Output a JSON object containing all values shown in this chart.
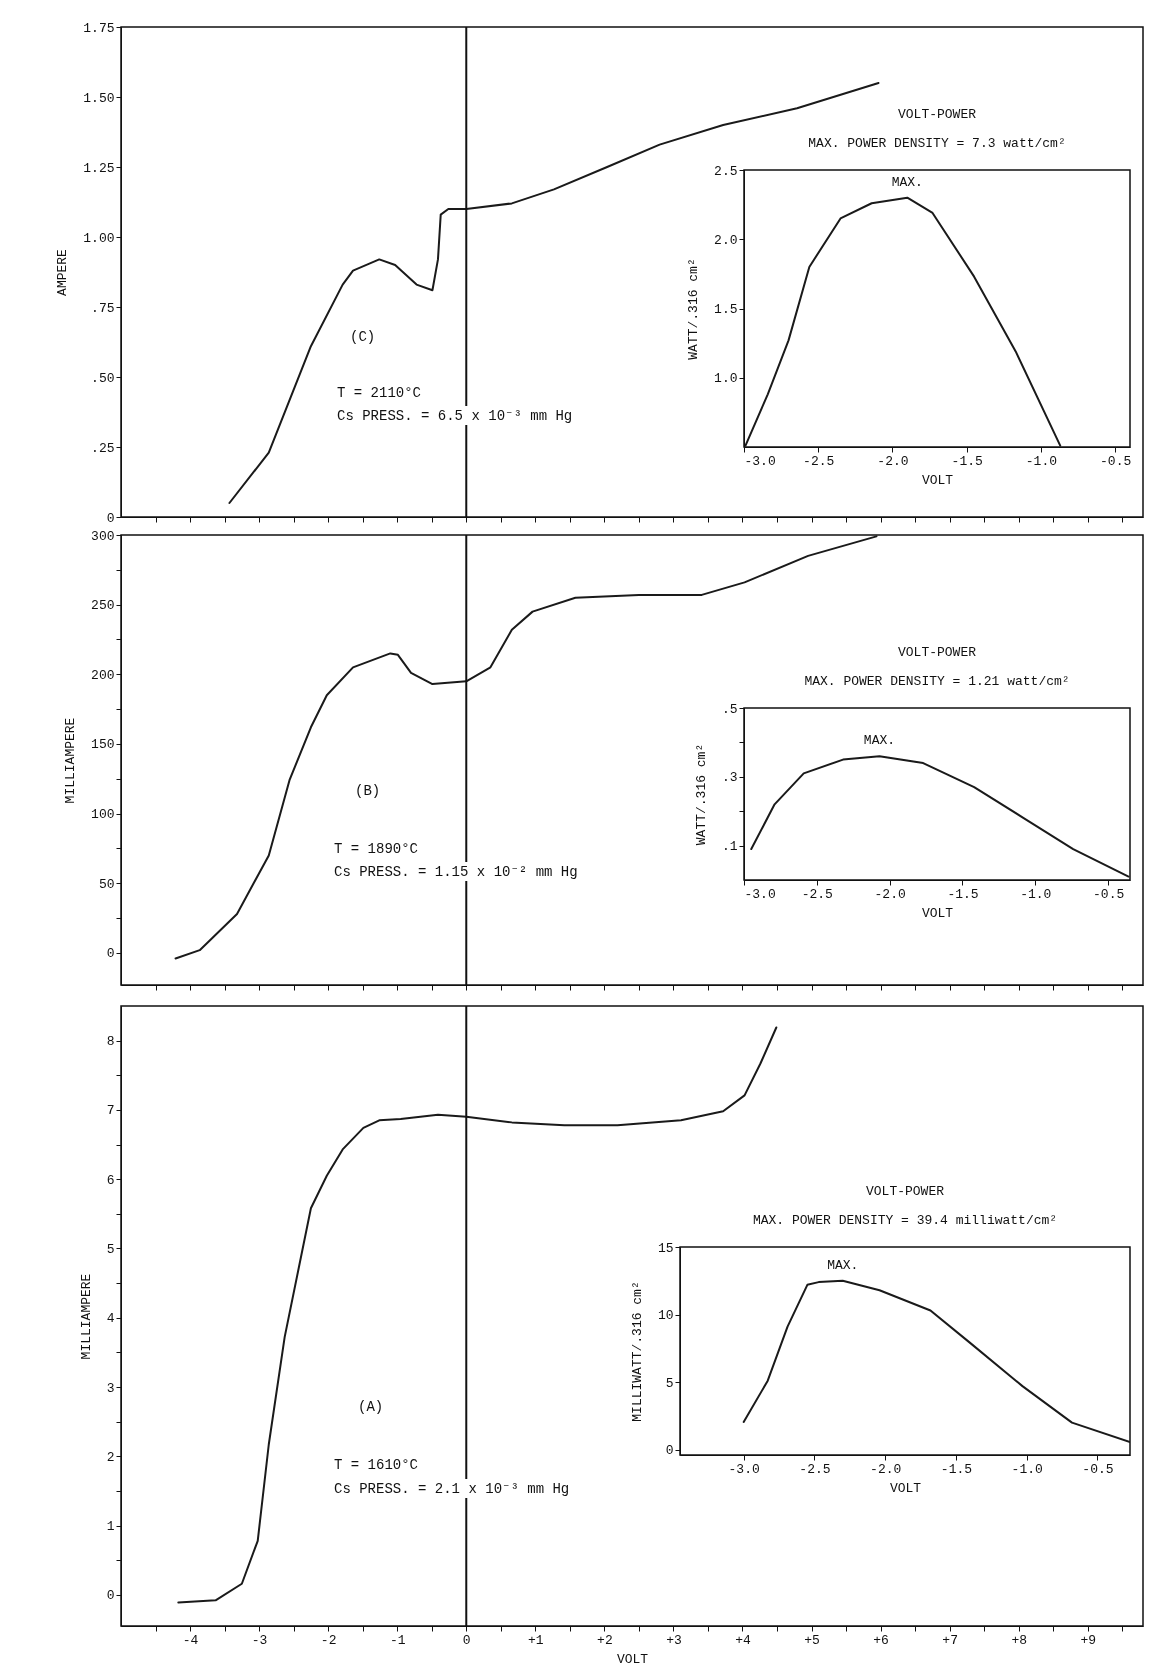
{
  "chart_data": [
    {
      "type": "line",
      "ylabel": "AMPERE",
      "xlim": [
        -5,
        9.8
      ],
      "ylim": [
        0,
        1.75
      ],
      "tick_labels": "y",
      "xticks": [
        {
          "value": -4.5,
          "label": null
        },
        {
          "value": -4,
          "label": null
        },
        {
          "value": -3.5,
          "label": null
        },
        {
          "value": -3,
          "label": null
        },
        {
          "value": -2.5,
          "label": null
        },
        {
          "value": -2,
          "label": null
        },
        {
          "value": -1.5,
          "label": null
        },
        {
          "value": -1,
          "label": null
        },
        {
          "value": -0.5,
          "label": null
        },
        {
          "value": 0,
          "label": null
        },
        {
          "value": 0.5,
          "label": null
        },
        {
          "value": 1,
          "label": null
        },
        {
          "value": 1.5,
          "label": null
        },
        {
          "value": 2,
          "label": null
        },
        {
          "value": 2.5,
          "label": null
        },
        {
          "value": 3,
          "label": null
        },
        {
          "value": 3.5,
          "label": null
        },
        {
          "value": 4,
          "label": null
        },
        {
          "value": 4.5,
          "label": null
        },
        {
          "value": 5,
          "label": null
        },
        {
          "value": 5.5,
          "label": null
        },
        {
          "value": 6,
          "label": null
        },
        {
          "value": 6.5,
          "label": null
        },
        {
          "value": 7,
          "label": null
        },
        {
          "value": 7.5,
          "label": null
        },
        {
          "value": 8,
          "label": null
        },
        {
          "value": 8.5,
          "label": null
        },
        {
          "value": 9,
          "label": null
        },
        {
          "value": 9.5,
          "label": null
        }
      ],
      "yticks": [
        0,
        {
          "value": 0.25,
          "label": ".25"
        },
        {
          "value": 0.5,
          "label": ".50"
        },
        {
          "value": 0.75,
          "label": ".75"
        },
        {
          "value": 1,
          "label": "1.00"
        },
        {
          "value": 1.25,
          "label": "1.25"
        },
        {
          "value": 1.5,
          "label": "1.50"
        },
        {
          "value": 1.75,
          "label": "1.75"
        }
      ],
      "series": [
        {
          "color": "#1a1a1a",
          "x": [
            -3.43,
            -2.86,
            -2.25,
            -1.79,
            -1.64,
            -1.26,
            -1.03,
            -0.72,
            -0.49,
            -0.41,
            -0.37,
            -0.26,
            0,
            0.66,
            1.27,
            2.04,
            2.8,
            3.72,
            4.79,
            5.97
          ],
          "values": [
            0.05,
            0.23,
            0.61,
            0.83,
            0.88,
            0.92,
            0.9,
            0.83,
            0.81,
            0.92,
            1.08,
            1.1,
            1.1,
            1.12,
            1.17,
            1.25,
            1.33,
            1.4,
            1.46,
            1.55
          ]
        }
      ],
      "ref_lines": [
        {
          "axis": "x",
          "value": 0
        }
      ],
      "annotations": [
        "(C)",
        "T = 2110°C",
        "Cs PRESS. = 6.5 x 10⁻³ mm Hg"
      ]
    },
    {
      "type": "line",
      "title": "VOLT-POWER",
      "subtitle": "MAX. POWER DENSITY = 7.3 watt/cm²",
      "xlabel": "VOLT",
      "ylabel": "WATT/.316 cm²",
      "xlim": [
        -3,
        -0.4
      ],
      "ylim": [
        0.5,
        2.5
      ],
      "xticks": [
        {
          "value": -3,
          "label": "-3.0"
        },
        -2.5,
        {
          "value": -2,
          "label": "-2.0"
        },
        -1.5,
        {
          "value": -1,
          "label": "-1.0"
        },
        -0.5
      ],
      "yticks": [
        {
          "value": 1,
          "label": "1.0"
        },
        1.5,
        {
          "value": 2,
          "label": "2.0"
        },
        2.5
      ],
      "series": [
        {
          "color": "#1a1a1a",
          "x": [
            -2.99,
            -2.84,
            -2.7,
            -2.56,
            -2.35,
            -2.14,
            -1.9,
            -1.73,
            -1.45,
            -1.17,
            -0.87
          ],
          "values": [
            0.51,
            0.88,
            1.27,
            1.8,
            2.15,
            2.26,
            2.3,
            2.19,
            1.73,
            1.19,
            0.51
          ]
        }
      ],
      "annotations": [
        {
          "text": "MAX.",
          "x": -1.9,
          "y": 2.3
        }
      ]
    },
    {
      "type": "line",
      "ylabel": "MILLIAMPERE",
      "xlim": [
        -5,
        9.8
      ],
      "ylim": [
        -23,
        300
      ],
      "tick_labels": "y",
      "xticks": [
        {
          "value": -4.5,
          "label": null
        },
        {
          "value": -4,
          "label": null
        },
        {
          "value": -3.5,
          "label": null
        },
        {
          "value": -3,
          "label": null
        },
        {
          "value": -2.5,
          "label": null
        },
        {
          "value": -2,
          "label": null
        },
        {
          "value": -1.5,
          "label": null
        },
        {
          "value": -1,
          "label": null
        },
        {
          "value": -0.5,
          "label": null
        },
        {
          "value": 0,
          "label": null
        },
        {
          "value": 0.5,
          "label": null
        },
        {
          "value": 1,
          "label": null
        },
        {
          "value": 1.5,
          "label": null
        },
        {
          "value": 2,
          "label": null
        },
        {
          "value": 2.5,
          "label": null
        },
        {
          "value": 3,
          "label": null
        },
        {
          "value": 3.5,
          "label": null
        },
        {
          "value": 4,
          "label": null
        },
        {
          "value": 4.5,
          "label": null
        },
        {
          "value": 5,
          "label": null
        },
        {
          "value": 5.5,
          "label": null
        },
        {
          "value": 6,
          "label": null
        },
        {
          "value": 6.5,
          "label": null
        },
        {
          "value": 7,
          "label": null
        },
        {
          "value": 7.5,
          "label": null
        },
        {
          "value": 8,
          "label": null
        },
        {
          "value": 8.5,
          "label": null
        },
        {
          "value": 9,
          "label": null
        },
        {
          "value": 9.5,
          "label": null
        }
      ],
      "yticks": [
        0,
        {
          "value": 25,
          "label": null
        },
        50,
        {
          "value": 75,
          "label": null
        },
        100,
        {
          "value": 125,
          "label": null
        },
        150,
        {
          "value": 175,
          "label": null
        },
        200,
        {
          "value": 225,
          "label": null
        },
        250,
        {
          "value": 275,
          "label": null
        },
        300
      ],
      "series": [
        {
          "color": "#1a1a1a",
          "x": [
            -4.21,
            -3.86,
            -3.32,
            -2.86,
            -2.56,
            -2.25,
            -2.02,
            -1.64,
            -1.1,
            -0.99,
            -0.8,
            -0.49,
            0,
            0.35,
            0.66,
            0.96,
            1.58,
            2.5,
            3.41,
            4.03,
            4.95,
            5.94
          ],
          "values": [
            -4,
            2,
            28,
            70,
            124,
            162,
            185,
            205,
            215,
            214,
            201,
            193,
            195,
            205,
            232,
            245,
            255,
            257,
            257,
            266,
            285,
            299
          ]
        }
      ],
      "ref_lines": [
        {
          "axis": "x",
          "value": 0
        }
      ],
      "annotations": [
        "(B)",
        "T = 1890°C",
        "Cs PRESS. = 1.15 x 10⁻² mm Hg"
      ]
    },
    {
      "type": "line",
      "title": "VOLT-POWER",
      "subtitle": "MAX. POWER DENSITY = 1.21 watt/cm²",
      "xlabel": "VOLT",
      "ylabel": "WATT/.316 cm²",
      "xlim": [
        -3,
        -0.35
      ],
      "ylim": [
        0,
        0.5
      ],
      "xticks": [
        {
          "value": -3,
          "label": "-3.0"
        },
        -2.5,
        {
          "value": -2,
          "label": "-2.0"
        },
        -1.5,
        {
          "value": -1,
          "label": "-1.0"
        },
        -0.5
      ],
      "yticks": [
        {
          "value": 0.1,
          "label": ".1"
        },
        {
          "value": 0.2,
          "label": null
        },
        {
          "value": 0.3,
          "label": ".3"
        },
        {
          "value": 0.4,
          "label": null
        },
        {
          "value": 0.5,
          "label": ".5"
        }
      ],
      "series": [
        {
          "color": "#1a1a1a",
          "x": [
            -2.95,
            -2.79,
            -2.59,
            -2.32,
            -2.07,
            -1.77,
            -1.42,
            -1.08,
            -0.74,
            -0.36
          ],
          "values": [
            0.09,
            0.22,
            0.31,
            0.35,
            0.36,
            0.34,
            0.27,
            0.18,
            0.09,
            0.01
          ]
        }
      ],
      "annotations": [
        {
          "text": "MAX.",
          "x": -2.07,
          "y": 0.36
        }
      ]
    },
    {
      "type": "line",
      "xlabel": "VOLT",
      "ylabel": "MILLIAMPERE",
      "xlim": [
        -5,
        9.8
      ],
      "ylim": [
        -0.45,
        8.5
      ],
      "xticks": [
        {
          "value": -4.5,
          "label": null
        },
        -4,
        {
          "value": -3.5,
          "label": null
        },
        -3,
        {
          "value": -2.5,
          "label": null
        },
        -2,
        {
          "value": -1.5,
          "label": null
        },
        -1,
        {
          "value": -0.5,
          "label": null
        },
        0,
        {
          "value": 0.5,
          "label": null
        },
        {
          "value": 1,
          "label": "+1"
        },
        {
          "value": 1.5,
          "label": null
        },
        {
          "value": 2,
          "label": "+2"
        },
        {
          "value": 2.5,
          "label": null
        },
        {
          "value": 3,
          "label": "+3"
        },
        {
          "value": 3.5,
          "label": null
        },
        {
          "value": 4,
          "label": "+4"
        },
        {
          "value": 4.5,
          "label": null
        },
        {
          "value": 5,
          "label": "+5"
        },
        {
          "value": 5.5,
          "label": null
        },
        {
          "value": 6,
          "label": "+6"
        },
        {
          "value": 6.5,
          "label": null
        },
        {
          "value": 7,
          "label": "+7"
        },
        {
          "value": 7.5,
          "label": null
        },
        {
          "value": 8,
          "label": "+8"
        },
        {
          "value": 8.5,
          "label": null
        },
        {
          "value": 9,
          "label": "+9"
        },
        {
          "value": 9.5,
          "label": null
        }
      ],
      "yticks": [
        0,
        {
          "value": 0.5,
          "label": null
        },
        1,
        {
          "value": 1.5,
          "label": null
        },
        2,
        {
          "value": 2.5,
          "label": null
        },
        3,
        {
          "value": 3.5,
          "label": null
        },
        4,
        {
          "value": 4.5,
          "label": null
        },
        5,
        {
          "value": 5.5,
          "label": null
        },
        6,
        {
          "value": 6.5,
          "label": null
        },
        7,
        {
          "value": 7.5,
          "label": null
        },
        8
      ],
      "series": [
        {
          "color": "#1a1a1a",
          "x": [
            -4.17,
            -3.63,
            -3.25,
            -3.02,
            -2.86,
            -2.63,
            -2.25,
            -2.02,
            -1.79,
            -1.49,
            -1.26,
            -0.95,
            -0.41,
            0,
            0.66,
            1.42,
            2.19,
            3.11,
            3.72,
            4.03,
            4.26,
            4.49
          ],
          "values": [
            -0.11,
            -0.08,
            0.16,
            0.78,
            2.17,
            3.72,
            5.58,
            6.05,
            6.43,
            6.74,
            6.85,
            6.87,
            6.93,
            6.9,
            6.82,
            6.78,
            6.78,
            6.85,
            6.98,
            7.21,
            7.67,
            8.19
          ]
        }
      ],
      "ref_lines": [
        {
          "axis": "x",
          "value": 0
        }
      ],
      "annotations": [
        "(A)",
        "T = 1610°C",
        "Cs PRESS. = 2.1 x 10⁻³ mm Hg"
      ]
    },
    {
      "type": "line",
      "title": "VOLT-POWER",
      "subtitle": "MAX. POWER DENSITY = 39.4 milliwatt/cm²",
      "xlabel": "VOLT",
      "ylabel": "MILLIWATT/.316 cm²",
      "xlim": [
        -3.45,
        -0.27
      ],
      "ylim": [
        -0.4,
        15
      ],
      "xticks": [
        {
          "value": -3,
          "label": "-3.0"
        },
        -2.5,
        {
          "value": -2,
          "label": "-2.0"
        },
        -1.5,
        {
          "value": -1,
          "label": "-1.0"
        },
        -0.5
      ],
      "yticks": [
        0,
        5,
        10,
        15
      ],
      "series": [
        {
          "color": "#1a1a1a",
          "x": [
            -3,
            -2.83,
            -2.69,
            -2.55,
            -2.47,
            -2.3,
            -2.04,
            -1.68,
            -1.4,
            -1.03,
            -0.68,
            -0.27
          ],
          "values": [
            2.05,
            5.1,
            9.1,
            12.2,
            12.4,
            12.5,
            11.8,
            10.3,
            7.9,
            4.7,
            2,
            0.55
          ]
        }
      ],
      "annotations": [
        {
          "text": "MAX.",
          "x": -2.3,
          "y": 12.5
        }
      ]
    }
  ]
}
